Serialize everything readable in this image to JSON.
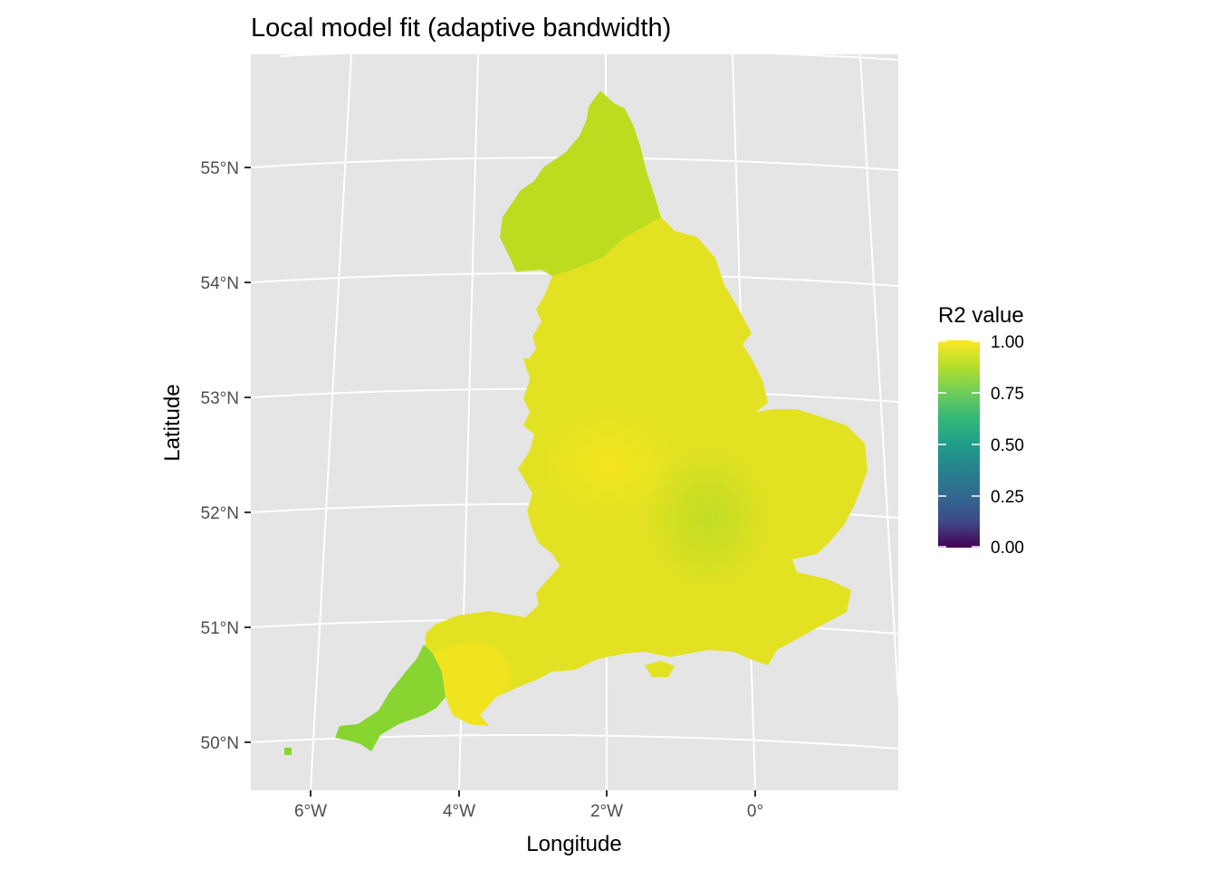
{
  "title": "Local model fit (adaptive bandwidth)",
  "x_axis_label": "Longitude",
  "y_axis_label": "Latitude",
  "longitude_ticks": [
    "6°W",
    "4°W",
    "2°W",
    "0°"
  ],
  "latitude_ticks": [
    "55°N",
    "54°N",
    "53°N",
    "52°N",
    "51°N",
    "50°N"
  ],
  "legend": {
    "title": "R2 value",
    "labels": [
      "1.00",
      "0.75",
      "0.50",
      "0.25",
      "0.00"
    ],
    "colors": [
      "#fde725",
      "#5ec962",
      "#21918c",
      "#3b528b",
      "#440154"
    ]
  },
  "colors": {
    "panel_background": "#e5e5e5",
    "graticule": "#ffffff",
    "main_fill": "#e2e222",
    "north_fill": "#bddc20",
    "cornwall_fill": "#88d430",
    "devon_fill": "#f0e41f",
    "midlands_fill": "#f4e41e",
    "east_fill": "#c8dd25"
  }
}
